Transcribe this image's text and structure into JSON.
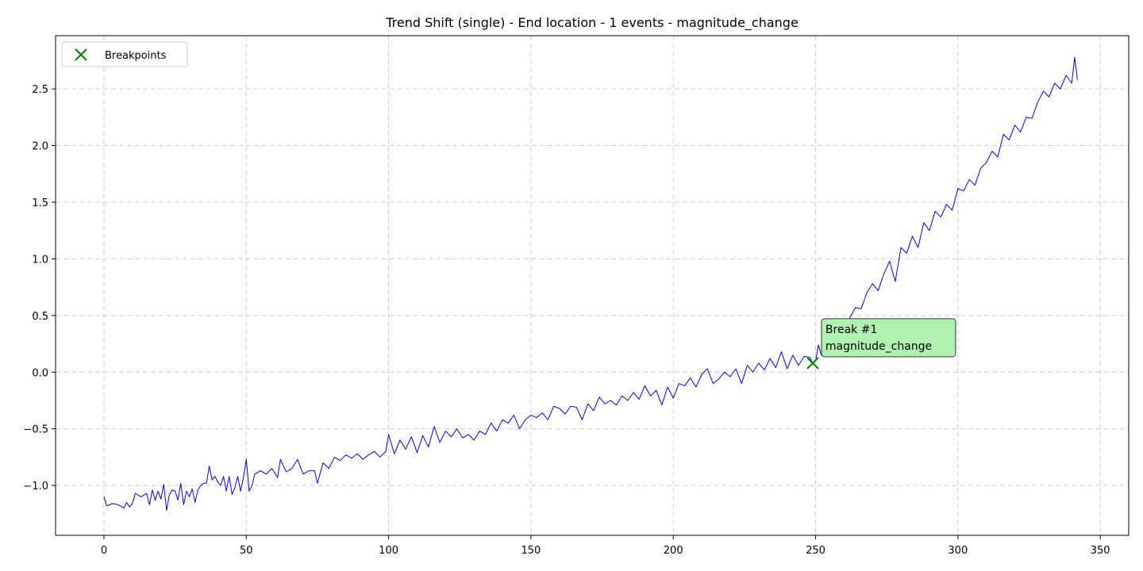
{
  "chart_data": {
    "type": "line",
    "title": "Trend Shift (single) - End location - 1 events - magnitude_change",
    "xlabel": "",
    "ylabel": "",
    "xlim": [
      -17,
      360
    ],
    "ylim": [
      -1.44,
      2.97
    ],
    "xticks": [
      0,
      50,
      100,
      150,
      200,
      250,
      300,
      350
    ],
    "yticks": [
      -1.0,
      -0.5,
      0.0,
      0.5,
      1.0,
      1.5,
      2.0,
      2.5
    ],
    "ytick_labels": [
      "−1.0",
      "−0.5",
      "0.0",
      "0.5",
      "1.0",
      "1.5",
      "2.0",
      "2.5"
    ],
    "grid": true,
    "legend": {
      "placement": "top-left",
      "entries": [
        "Breakpoints"
      ]
    },
    "series": [
      {
        "x_start": 0,
        "x_step": 1,
        "color": "#0000ff",
        "anchors": [
          [
            0,
            -1.1
          ],
          [
            1,
            -1.18
          ],
          [
            3,
            -1.16
          ],
          [
            5,
            -1.17
          ],
          [
            7,
            -1.2
          ],
          [
            8,
            -1.15
          ],
          [
            9,
            -1.19
          ],
          [
            10,
            -1.16
          ],
          [
            11,
            -1.07
          ],
          [
            13,
            -1.1
          ],
          [
            15,
            -1.07
          ],
          [
            16,
            -1.17
          ],
          [
            17,
            -1.04
          ],
          [
            18,
            -1.13
          ],
          [
            19,
            -1.05
          ],
          [
            20,
            -1.12
          ],
          [
            21,
            -0.99
          ],
          [
            22,
            -1.22
          ],
          [
            23,
            -1.08
          ],
          [
            24,
            -1.04
          ],
          [
            25,
            -1.05
          ],
          [
            26,
            -1.13
          ],
          [
            27,
            -0.98
          ],
          [
            28,
            -1.17
          ],
          [
            29,
            -1.05
          ],
          [
            30,
            -1.1
          ],
          [
            31,
            -1.03
          ],
          [
            32,
            -1.15
          ],
          [
            33,
            -1.04
          ],
          [
            34,
            -1.0
          ],
          [
            35,
            -0.98
          ],
          [
            36,
            -0.98
          ],
          [
            37,
            -0.83
          ],
          [
            38,
            -0.95
          ],
          [
            39,
            -0.92
          ],
          [
            40,
            -0.97
          ],
          [
            41,
            -1.0
          ],
          [
            42,
            -0.92
          ],
          [
            43,
            -1.05
          ],
          [
            44,
            -0.92
          ],
          [
            45,
            -1.08
          ],
          [
            46,
            -1.02
          ],
          [
            47,
            -0.92
          ],
          [
            48,
            -1.05
          ],
          [
            49,
            -0.93
          ],
          [
            50,
            -0.77
          ],
          [
            51,
            -1.05
          ],
          [
            52,
            -1.0
          ],
          [
            53,
            -0.9
          ],
          [
            55,
            -0.87
          ],
          [
            57,
            -0.9
          ],
          [
            59,
            -0.85
          ],
          [
            61,
            -0.93
          ],
          [
            62,
            -0.77
          ],
          [
            64,
            -0.88
          ],
          [
            66,
            -0.85
          ],
          [
            68,
            -0.77
          ],
          [
            70,
            -0.9
          ],
          [
            72,
            -0.87
          ],
          [
            74,
            -0.87
          ],
          [
            75,
            -0.98
          ],
          [
            77,
            -0.8
          ],
          [
            79,
            -0.85
          ],
          [
            81,
            -0.75
          ],
          [
            83,
            -0.78
          ],
          [
            85,
            -0.73
          ],
          [
            87,
            -0.76
          ],
          [
            89,
            -0.72
          ],
          [
            91,
            -0.77
          ],
          [
            93,
            -0.73
          ],
          [
            95,
            -0.7
          ],
          [
            97,
            -0.75
          ],
          [
            99,
            -0.7
          ],
          [
            100,
            -0.55
          ],
          [
            102,
            -0.72
          ],
          [
            104,
            -0.6
          ],
          [
            106,
            -0.68
          ],
          [
            108,
            -0.57
          ],
          [
            110,
            -0.71
          ],
          [
            112,
            -0.56
          ],
          [
            114,
            -0.66
          ],
          [
            116,
            -0.48
          ],
          [
            118,
            -0.62
          ],
          [
            120,
            -0.52
          ],
          [
            122,
            -0.57
          ],
          [
            124,
            -0.5
          ],
          [
            126,
            -0.58
          ],
          [
            128,
            -0.55
          ],
          [
            130,
            -0.6
          ],
          [
            132,
            -0.52
          ],
          [
            134,
            -0.55
          ],
          [
            136,
            -0.45
          ],
          [
            138,
            -0.52
          ],
          [
            140,
            -0.42
          ],
          [
            142,
            -0.45
          ],
          [
            144,
            -0.38
          ],
          [
            146,
            -0.5
          ],
          [
            148,
            -0.42
          ],
          [
            150,
            -0.38
          ],
          [
            152,
            -0.4
          ],
          [
            154,
            -0.36
          ],
          [
            156,
            -0.42
          ],
          [
            158,
            -0.3
          ],
          [
            160,
            -0.32
          ],
          [
            162,
            -0.37
          ],
          [
            164,
            -0.3
          ],
          [
            166,
            -0.31
          ],
          [
            168,
            -0.42
          ],
          [
            170,
            -0.28
          ],
          [
            172,
            -0.34
          ],
          [
            174,
            -0.22
          ],
          [
            176,
            -0.28
          ],
          [
            178,
            -0.25
          ],
          [
            180,
            -0.29
          ],
          [
            182,
            -0.21
          ],
          [
            184,
            -0.25
          ],
          [
            186,
            -0.18
          ],
          [
            188,
            -0.24
          ],
          [
            190,
            -0.12
          ],
          [
            192,
            -0.21
          ],
          [
            194,
            -0.16
          ],
          [
            196,
            -0.29
          ],
          [
            198,
            -0.13
          ],
          [
            200,
            -0.23
          ],
          [
            202,
            -0.1
          ],
          [
            204,
            -0.12
          ],
          [
            206,
            -0.05
          ],
          [
            208,
            -0.13
          ],
          [
            210,
            -0.02
          ],
          [
            212,
            0.03
          ],
          [
            214,
            -0.1
          ],
          [
            216,
            -0.06
          ],
          [
            218,
            0.0
          ],
          [
            220,
            -0.04
          ],
          [
            222,
            0.03
          ],
          [
            224,
            -0.1
          ],
          [
            226,
            0.06
          ],
          [
            228,
            0.0
          ],
          [
            230,
            0.08
          ],
          [
            232,
            0.02
          ],
          [
            234,
            0.12
          ],
          [
            236,
            0.04
          ],
          [
            238,
            0.18
          ],
          [
            240,
            0.03
          ],
          [
            242,
            0.15
          ],
          [
            244,
            0.06
          ],
          [
            246,
            0.14
          ],
          [
            248,
            0.13
          ],
          [
            249,
            0.08
          ],
          [
            250,
            0.1
          ],
          [
            251,
            0.24
          ],
          [
            252,
            0.15
          ],
          [
            254,
            0.32
          ],
          [
            256,
            0.25
          ],
          [
            258,
            0.4
          ],
          [
            260,
            0.35
          ],
          [
            262,
            0.48
          ],
          [
            264,
            0.57
          ],
          [
            266,
            0.56
          ],
          [
            268,
            0.7
          ],
          [
            270,
            0.78
          ],
          [
            272,
            0.72
          ],
          [
            274,
            0.87
          ],
          [
            276,
            0.98
          ],
          [
            278,
            0.8
          ],
          [
            280,
            1.1
          ],
          [
            282,
            1.05
          ],
          [
            284,
            1.2
          ],
          [
            286,
            1.1
          ],
          [
            288,
            1.32
          ],
          [
            290,
            1.25
          ],
          [
            292,
            1.42
          ],
          [
            294,
            1.37
          ],
          [
            296,
            1.48
          ],
          [
            298,
            1.43
          ],
          [
            300,
            1.62
          ],
          [
            302,
            1.6
          ],
          [
            304,
            1.7
          ],
          [
            306,
            1.65
          ],
          [
            308,
            1.8
          ],
          [
            310,
            1.85
          ],
          [
            312,
            1.95
          ],
          [
            314,
            1.9
          ],
          [
            316,
            2.1
          ],
          [
            318,
            2.05
          ],
          [
            320,
            2.18
          ],
          [
            322,
            2.12
          ],
          [
            324,
            2.25
          ],
          [
            326,
            2.24
          ],
          [
            328,
            2.38
          ],
          [
            330,
            2.48
          ],
          [
            332,
            2.43
          ],
          [
            334,
            2.55
          ],
          [
            336,
            2.5
          ],
          [
            338,
            2.62
          ],
          [
            340,
            2.55
          ],
          [
            341,
            2.78
          ],
          [
            342,
            2.58
          ]
        ]
      }
    ],
    "breakpoints": [
      {
        "x": 249,
        "y": 0.08,
        "label": "Break #1\nmagnitude_change",
        "color": "#008000"
      }
    ],
    "annotation_fill": "#b0f2b0"
  }
}
